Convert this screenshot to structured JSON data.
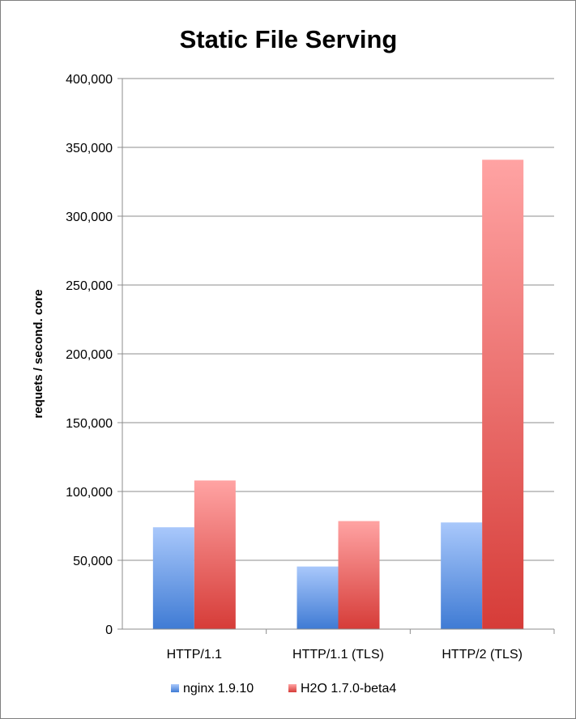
{
  "chart_data": {
    "type": "bar",
    "title": "Static File Serving",
    "xlabel": "",
    "ylabel": "requets / second. core",
    "categories": [
      "HTTP/1.1",
      "HTTP/1.1 (TLS)",
      "HTTP/2 (TLS)"
    ],
    "series": [
      {
        "name": "nginx 1.9.10",
        "values": [
          74000,
          45500,
          77500
        ],
        "color": "#5b8fe0"
      },
      {
        "name": "H2O 1.7.0-beta4",
        "values": [
          108000,
          78500,
          341000
        ],
        "color": "#e05a5a"
      }
    ],
    "ylim": [
      0,
      400000
    ],
    "yticks": [
      0,
      50000,
      100000,
      150000,
      200000,
      250000,
      300000,
      350000,
      400000
    ],
    "ytick_labels": [
      "0",
      "50,000",
      "100,000",
      "150,000",
      "200,000",
      "250,000",
      "300,000",
      "350,000",
      "400,000"
    ],
    "grid": true,
    "legend_position": "bottom"
  }
}
